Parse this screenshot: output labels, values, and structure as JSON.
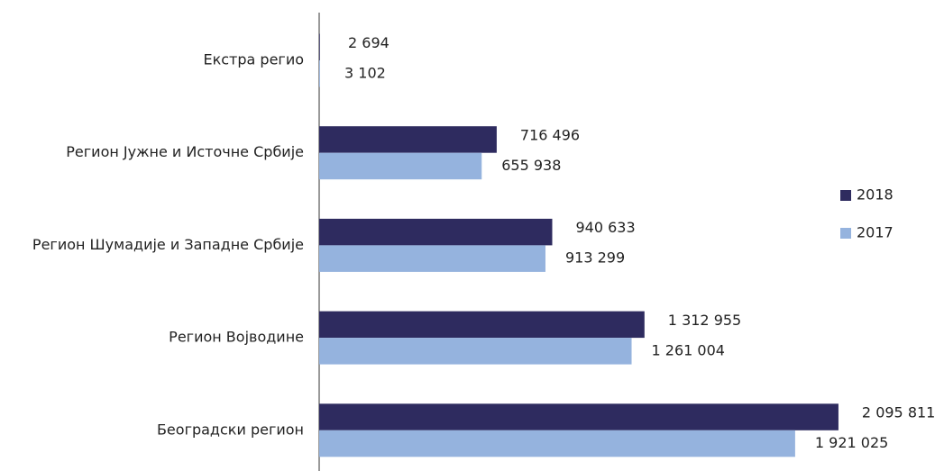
{
  "chart_data": {
    "type": "barh",
    "categories": [
      "Екстра регио",
      "Регион Јужне и Источне Србије",
      "Регион Шумадије и Западне Србије",
      "Регион Војводине",
      "Београдски регион"
    ],
    "series": [
      {
        "name": "2018",
        "color": "#2e2b5f",
        "values": [
          2694,
          716496,
          940633,
          1312955,
          2095811
        ],
        "value_labels": [
          "2 694",
          "716 496",
          "940 633",
          "1 312 955",
          "2 095 811"
        ]
      },
      {
        "name": "2017",
        "color": "#95b3de",
        "values": [
          3102,
          655938,
          913299,
          1261004,
          1921025
        ],
        "value_labels": [
          "3 102",
          "655 938",
          "913 299",
          "1 261 004",
          "1 921 025"
        ]
      }
    ],
    "xlim": [
      0,
      2500000
    ],
    "legend": "right"
  }
}
